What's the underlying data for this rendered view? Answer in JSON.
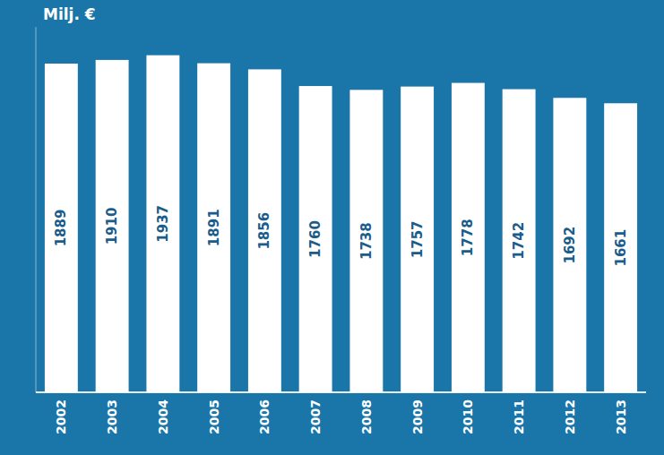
{
  "chart_data": {
    "type": "bar",
    "ylabel": "Milj. €",
    "categories": [
      "2002",
      "2003",
      "2004",
      "2005",
      "2006",
      "2007",
      "2008",
      "2009",
      "2010",
      "2011",
      "2012",
      "2013"
    ],
    "values": [
      1889,
      1910,
      1937,
      1891,
      1856,
      1760,
      1738,
      1757,
      1778,
      1742,
      1692,
      1661
    ],
    "color": "#ffffff",
    "ylim": [
      0,
      2100
    ],
    "yticks": [],
    "tick_labels": "x",
    "data_labels": true,
    "grid": false
  }
}
